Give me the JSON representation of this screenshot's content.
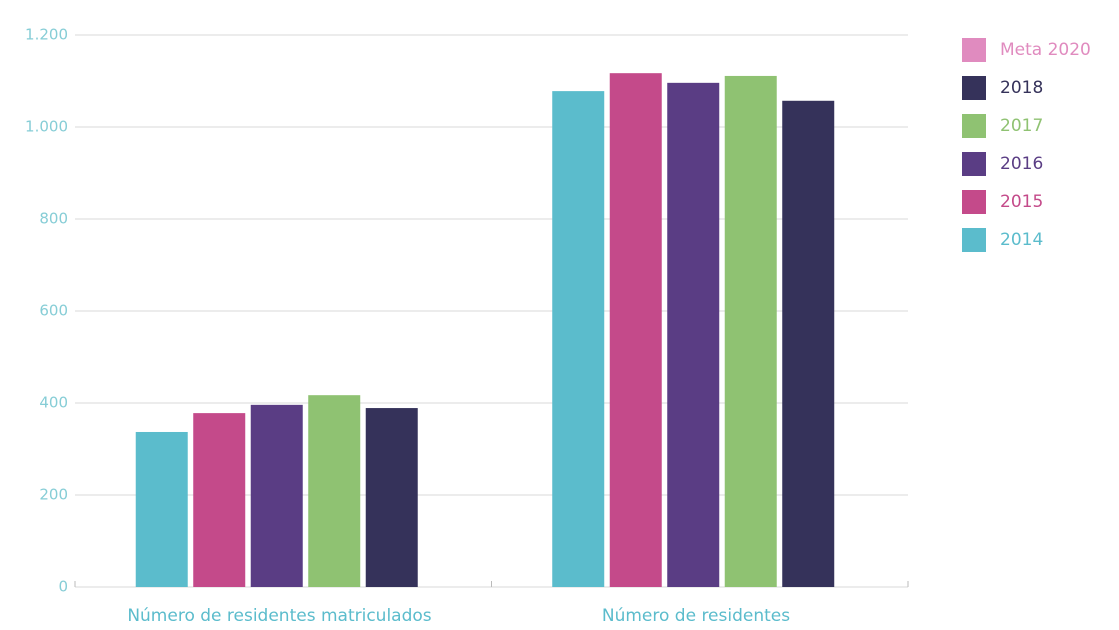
{
  "chart_data": {
    "type": "bar",
    "categories": [
      "Número de residentes matriculados",
      "Número de residentes"
    ],
    "series": [
      {
        "name": "2014",
        "color": "#5bbccc",
        "values": [
          337,
          1078
        ]
      },
      {
        "name": "2015",
        "color": "#c44a8a",
        "values": [
          378,
          1117
        ]
      },
      {
        "name": "2016",
        "color": "#5a3d84",
        "values": [
          396,
          1096
        ]
      },
      {
        "name": "2017",
        "color": "#8fc272",
        "values": [
          417,
          1111
        ]
      },
      {
        "name": "2018",
        "color": "#35325a",
        "values": [
          389,
          1057
        ]
      },
      {
        "name": "Meta 2020",
        "color": "#e08bbf",
        "values": [
          null,
          null
        ]
      }
    ],
    "ylim": [
      0,
      1200
    ],
    "yticks": [
      0,
      200,
      400,
      600,
      800,
      {
        "value": 1000,
        "label": "1.000"
      },
      {
        "value": 1200,
        "label": "1.200"
      }
    ],
    "grid": true
  }
}
